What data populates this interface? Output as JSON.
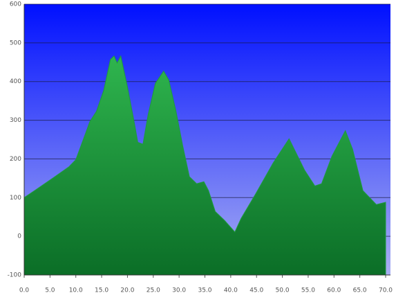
{
  "chart_data": {
    "type": "area",
    "x": [
      0,
      2,
      5.3,
      8.7,
      10,
      12,
      12.7,
      14,
      15.4,
      16.7,
      17.4,
      18,
      18.7,
      20,
      21.4,
      22,
      23,
      24,
      25.4,
      27,
      28,
      29.4,
      30.7,
      32,
      33.4,
      34.8,
      35.7,
      37,
      38.8,
      40.8,
      42,
      44.8,
      48.2,
      51.3,
      54.3,
      56.3,
      57.6,
      59.6,
      62.2,
      63.6,
      65.6,
      68.2,
      70
    ],
    "values": [
      100,
      118,
      148,
      180,
      198,
      270,
      296,
      323,
      377,
      457,
      466,
      448,
      466,
      386,
      288,
      243,
      238,
      314,
      395,
      427,
      404,
      323,
      234,
      154,
      136,
      141,
      118,
      64,
      41,
      11,
      46,
      109,
      189,
      252,
      171,
      130,
      136,
      207,
      273,
      225,
      118,
      82,
      88
    ],
    "xlim": [
      0,
      70
    ],
    "xticks": [
      {
        "value": 0,
        "label": "0.0"
      },
      {
        "value": 5,
        "label": "5.0"
      },
      {
        "value": 10,
        "label": "10.0"
      },
      {
        "value": 15,
        "label": "15.0"
      },
      {
        "value": 20,
        "label": "20.0"
      },
      {
        "value": 25,
        "label": "25.0"
      },
      {
        "value": 30,
        "label": "30.0"
      },
      {
        "value": 35,
        "label": "35.0"
      },
      {
        "value": 40,
        "label": "40.0"
      },
      {
        "value": 45,
        "label": "45.0"
      },
      {
        "value": 50,
        "label": "50.0"
      },
      {
        "value": 55,
        "label": "55.0"
      },
      {
        "value": 60,
        "label": "60.0"
      },
      {
        "value": 65,
        "label": "65.0"
      },
      {
        "value": 70,
        "label": "70.0"
      }
    ],
    "ylim": [
      -100,
      600
    ],
    "yticks": [
      -100,
      0,
      100,
      200,
      300,
      400,
      500,
      600
    ],
    "grid": true,
    "color": "#1f9a3e"
  }
}
